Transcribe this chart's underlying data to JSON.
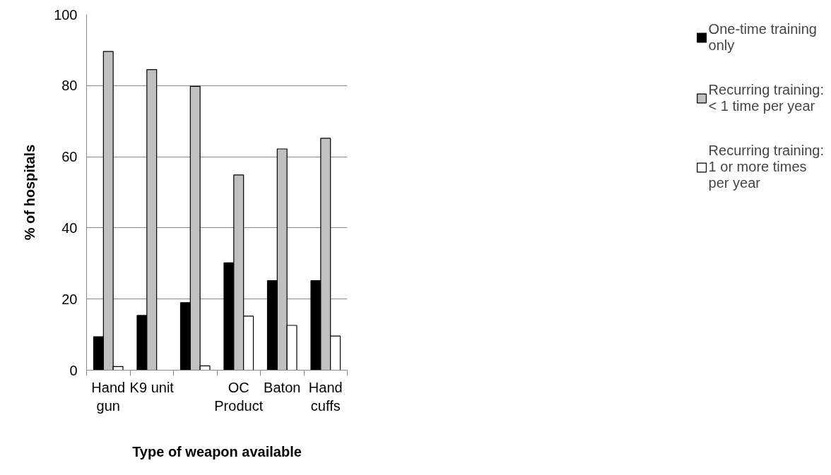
{
  "chart_data": {
    "type": "bar",
    "xlabel": "Type of weapon available",
    "ylabel": "% of hospitals",
    "categories": [
      "Hand\ngun",
      "K9 unit",
      null,
      "OC\nProduct",
      "Baton",
      "Hand\ncuffs"
    ],
    "series": [
      {
        "name": "One-time training\nonly",
        "color": "#000000",
        "values": [
          9.4,
          15.4,
          19.0,
          30.2,
          25.2,
          25.2
        ]
      },
      {
        "name": "Recurring training:\n< 1 time per year",
        "color": "#c0c0c0",
        "values": [
          89.6,
          84.5,
          79.8,
          54.9,
          62.2,
          65.2
        ]
      },
      {
        "name": "Recurring training:\n1 or more times\nper year",
        "color": "#ffffff",
        "values": [
          1.0,
          null,
          1.2,
          15.2,
          12.6,
          9.6
        ]
      }
    ],
    "ylim": [
      0,
      100
    ],
    "yticks": [
      0,
      20,
      40,
      60,
      80,
      100
    ],
    "grid": "y",
    "legend": "right"
  }
}
